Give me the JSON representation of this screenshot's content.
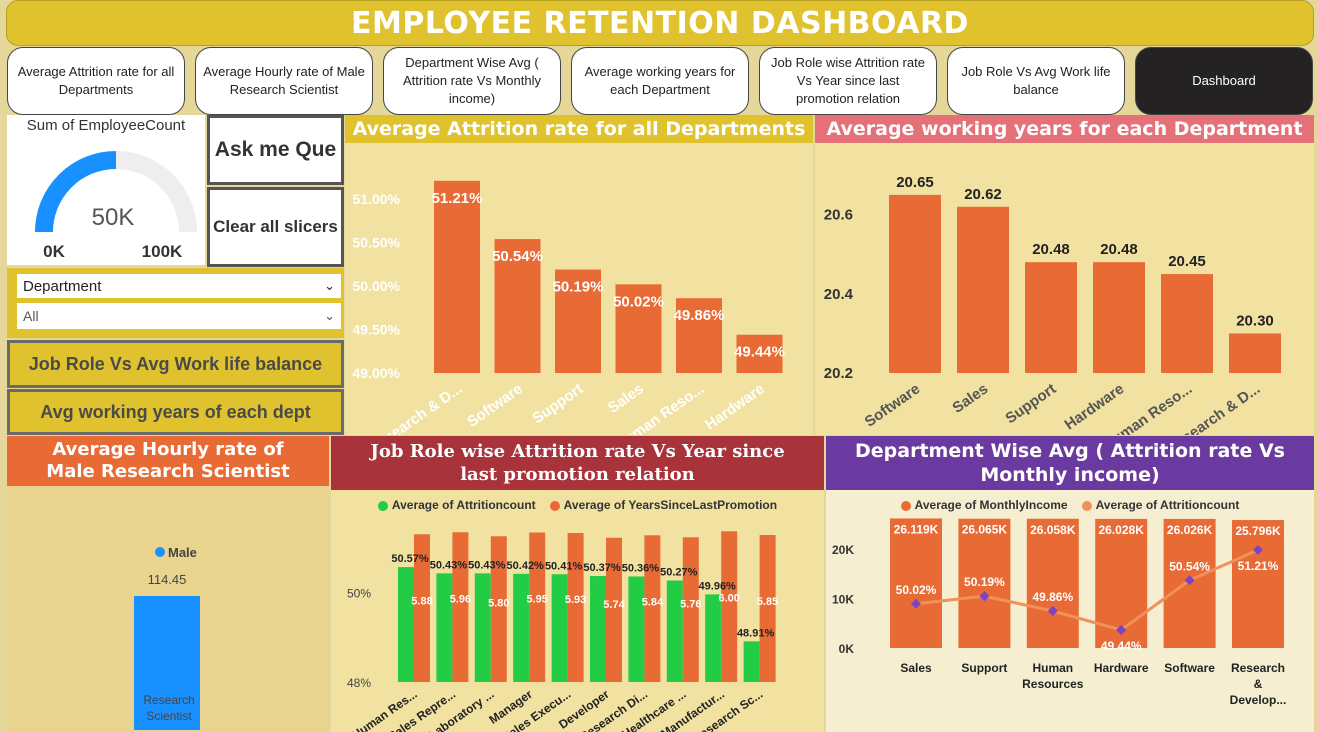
{
  "title": "EMPLOYEE RETENTION DASHBOARD",
  "nav": [
    {
      "label": "Average Attrition rate for all Departments"
    },
    {
      "label": "Average Hourly rate of Male Research Scientist"
    },
    {
      "label": "Department Wise Avg ( Attrition rate Vs Monthly income)"
    },
    {
      "label": "Average working years for each Department"
    },
    {
      "label": "Job Role wise Attrition rate Vs Year since last promotion relation"
    },
    {
      "label": "Job Role Vs Avg Work life balance"
    },
    {
      "label": "Dashboard"
    }
  ],
  "gauge": {
    "title": "Sum of EmployeeCount",
    "value_label": "50K",
    "min_label": "0K",
    "max_label": "100K",
    "fraction": 0.5
  },
  "side": {
    "ask_label": "Ask me Que",
    "clear_label": "Clear all slicers",
    "slicer_label": "Department",
    "slicer_value": "All",
    "btn_worklife": "Job Role Vs Avg Work life balance",
    "btn_workyears": "Avg working years of each dept"
  },
  "colors": {
    "orange": "#e86b35",
    "green": "#22cc44",
    "blue": "#1890ff",
    "purple": "#7b44c4"
  },
  "chart_data": [
    {
      "id": "attrition_dept",
      "type": "bar",
      "title": "Average Attrition rate for all Departments",
      "categories": [
        "Research & D...",
        "Software",
        "Support",
        "Sales",
        "Human Reso...",
        "Hardware"
      ],
      "values": [
        51.21,
        50.54,
        50.19,
        50.02,
        49.86,
        49.44
      ],
      "value_labels": [
        "51.21%",
        "50.54%",
        "50.19%",
        "50.02%",
        "49.86%",
        "49.44%"
      ],
      "ylim": [
        49,
        51.3
      ],
      "yticks": [
        "51.00%",
        "50.50%",
        "50.00%",
        "49.50%",
        "49.00%"
      ],
      "ytick_values": [
        51,
        50.5,
        50,
        49.5,
        49
      ]
    },
    {
      "id": "working_years",
      "type": "bar",
      "title": "Average working years for each Department",
      "categories": [
        "Software",
        "Sales",
        "Support",
        "Hardware",
        "Human Reso...",
        "Research & D..."
      ],
      "values": [
        20.65,
        20.62,
        20.48,
        20.48,
        20.45,
        20.3
      ],
      "value_labels": [
        "20.65",
        "20.62",
        "20.48",
        "20.48",
        "20.45",
        "20.30"
      ],
      "ylim": [
        20.2,
        20.68
      ],
      "yticks": [
        "20.6",
        "20.4",
        "20.2"
      ],
      "ytick_values": [
        20.6,
        20.4,
        20.2
      ]
    },
    {
      "id": "hourly_rate",
      "type": "bar",
      "title": "Average Hourly rate of Male Research Scientist",
      "legend": "Male",
      "categories": [
        "Research Scientist"
      ],
      "values": [
        114.45
      ],
      "value_labels": [
        "114.45"
      ]
    },
    {
      "id": "jobrole_attrition",
      "type": "bar",
      "title": "Job Role wise Attrition rate Vs Year since last promotion relation",
      "categories": [
        "Human Res...",
        "Sales Repre...",
        "Laboratory ...",
        "Manager",
        "Sales Execu...",
        "Developer",
        "Research Di...",
        "Healthcare ...",
        "Manufactur...",
        "Research Sc..."
      ],
      "series": [
        {
          "name": "Average of Attritioncount",
          "values": [
            50.57,
            50.43,
            50.43,
            50.42,
            50.41,
            50.37,
            50.36,
            50.27,
            49.96,
            48.91
          ],
          "labels": [
            "50.57%",
            "50.43%",
            "50.43%",
            "50.42%",
            "50.41%",
            "50.37%",
            "50.36%",
            "50.27%",
            "49.96%",
            "48.91%"
          ]
        },
        {
          "name": "Average of YearsSinceLastPromotion",
          "values": [
            5.88,
            5.96,
            5.8,
            5.95,
            5.93,
            5.74,
            5.84,
            5.76,
            6.0,
            5.85
          ],
          "labels": [
            "5.88",
            "5.96",
            "5.80",
            "5.95",
            "5.93",
            "5.74",
            "5.84",
            "5.76",
            "6.00",
            "5.85"
          ]
        }
      ],
      "ylim": [
        48,
        51.4
      ],
      "yticks": [
        "50%",
        "48%"
      ],
      "ytick_values": [
        50,
        48
      ]
    },
    {
      "id": "dept_income",
      "type": "bar",
      "title": "Department Wise Avg ( Attrition rate Vs Monthly income)",
      "categories": [
        "Sales",
        "Support",
        "Human Resources",
        "Hardware",
        "Software",
        "Research & Develop..."
      ],
      "series": [
        {
          "name": "Average of MonthlyIncome",
          "values": [
            26119,
            26065,
            26058,
            26028,
            26026,
            25796
          ],
          "labels": [
            "26.119K",
            "26.065K",
            "26.058K",
            "26.028K",
            "26.026K",
            "25.796K"
          ]
        },
        {
          "name": "Average of Attritioncount",
          "values": [
            50.02,
            50.19,
            49.86,
            49.44,
            50.54,
            51.21
          ],
          "labels": [
            "50.02%",
            "50.19%",
            "49.86%",
            "49.44%",
            "50.54%",
            "51.21%"
          ]
        }
      ],
      "ylim": [
        0,
        25000
      ],
      "yticks": [
        "20K",
        "10K",
        "0K"
      ],
      "ytick_values": [
        20000,
        10000,
        0
      ]
    }
  ]
}
